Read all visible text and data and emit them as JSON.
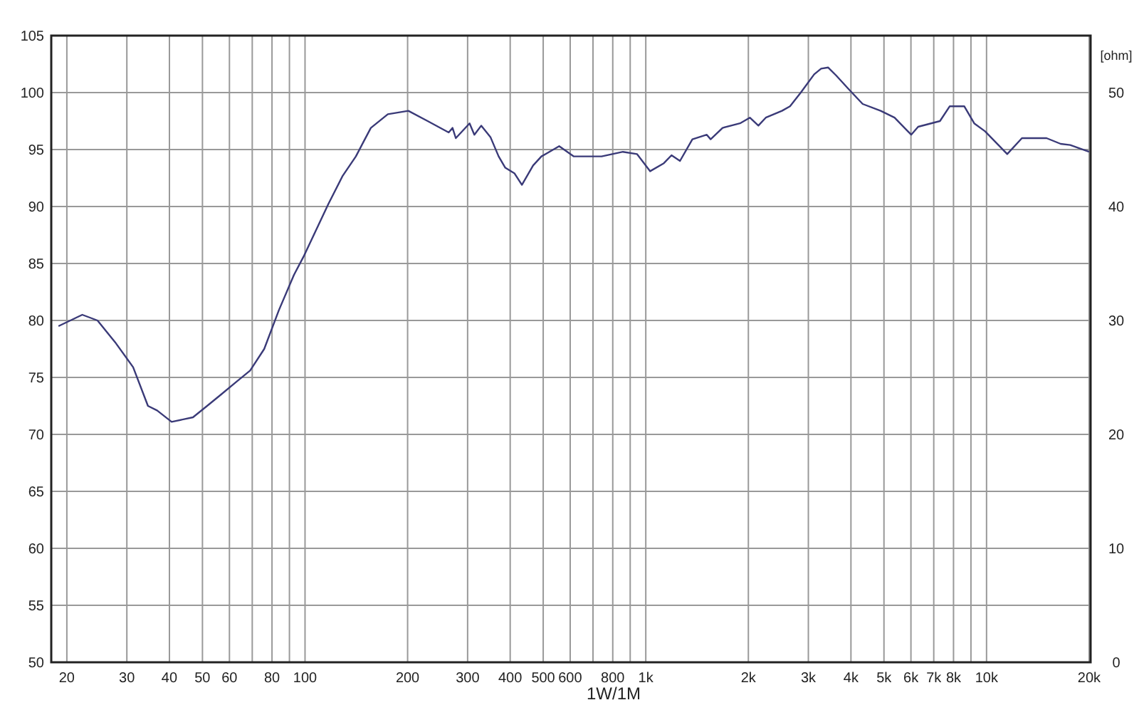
{
  "chart_data": {
    "type": "line",
    "xlabel": "1W/1M",
    "y2label": "[ohm]",
    "log": "x",
    "grid": true,
    "x": [
      18.9,
      22.2,
      24.6,
      27.7,
      31.3,
      34.6,
      36.8,
      40.6,
      46.9,
      51.6,
      56.7,
      62.8,
      69,
      75.9,
      83.8,
      92.8,
      99,
      117,
      129,
      141,
      156,
      175,
      201,
      229,
      264,
      271,
      277,
      304,
      314,
      329,
      350,
      370,
      387,
      412,
      433,
      467,
      494,
      557,
      614,
      742,
      857,
      943,
      1030,
      1130,
      1190,
      1260,
      1370,
      1510,
      1550,
      1680,
      1890,
      2020,
      2140,
      2250,
      2510,
      2650,
      2850,
      3120,
      3270,
      3430,
      3620,
      3940,
      4330,
      4890,
      5370,
      6010,
      6300,
      7300,
      7800,
      8600,
      9200,
      9900,
      11500,
      12700,
      15000,
      16500,
      17600,
      20000
    ],
    "series": [
      {
        "color": "#3a3a78",
        "values": [
          79.5,
          80.5,
          80.0,
          78.1,
          75.9,
          72.5,
          72.1,
          71.1,
          71.5,
          72.5,
          73.5,
          74.6,
          75.6,
          77.5,
          80.9,
          84.0,
          85.6,
          90.2,
          92.7,
          94.4,
          96.9,
          98.1,
          98.4,
          97.5,
          96.5,
          96.9,
          96.0,
          97.3,
          96.3,
          97.1,
          96.1,
          94.4,
          93.4,
          92.9,
          91.9,
          93.6,
          94.4,
          95.3,
          94.4,
          94.4,
          94.8,
          94.6,
          93.1,
          93.8,
          94.5,
          94.0,
          95.9,
          96.3,
          95.9,
          96.9,
          97.3,
          97.8,
          97.1,
          97.8,
          98.4,
          98.8,
          100.0,
          101.6,
          102.1,
          102.2,
          101.5,
          100.3,
          99.0,
          98.4,
          97.8,
          96.3,
          97.0,
          97.5,
          98.8,
          98.8,
          97.3,
          96.6,
          94.6,
          96.0,
          96.0,
          95.5,
          95.4,
          94.8
        ]
      }
    ],
    "xlim": [
      18,
      20200
    ],
    "xticks": [
      20,
      30,
      40,
      50,
      60,
      {
        "value": 70,
        "label": null
      },
      80,
      {
        "value": 90,
        "label": null
      },
      100,
      200,
      300,
      400,
      500,
      600,
      {
        "value": 700,
        "label": null
      },
      800,
      {
        "value": 900,
        "label": null
      },
      {
        "value": 1000,
        "label": "1k"
      },
      {
        "value": 2000,
        "label": "2k"
      },
      {
        "value": 3000,
        "label": "3k"
      },
      {
        "value": 4000,
        "label": "4k"
      },
      {
        "value": 5000,
        "label": "5k"
      },
      {
        "value": 6000,
        "label": "6k"
      },
      {
        "value": 7000,
        "label": "7k"
      },
      {
        "value": 8000,
        "label": "8k"
      },
      {
        "value": 9000,
        "label": null
      },
      {
        "value": 10000,
        "label": "10k"
      },
      {
        "value": 20000,
        "label": "20k"
      }
    ],
    "ylim": [
      50,
      105
    ],
    "yticks": [
      50,
      55,
      60,
      65,
      70,
      75,
      80,
      85,
      90,
      95,
      100,
      105
    ],
    "y2lim": [
      0,
      55
    ],
    "y2ticks": [
      0,
      10,
      20,
      30,
      40,
      50
    ]
  }
}
